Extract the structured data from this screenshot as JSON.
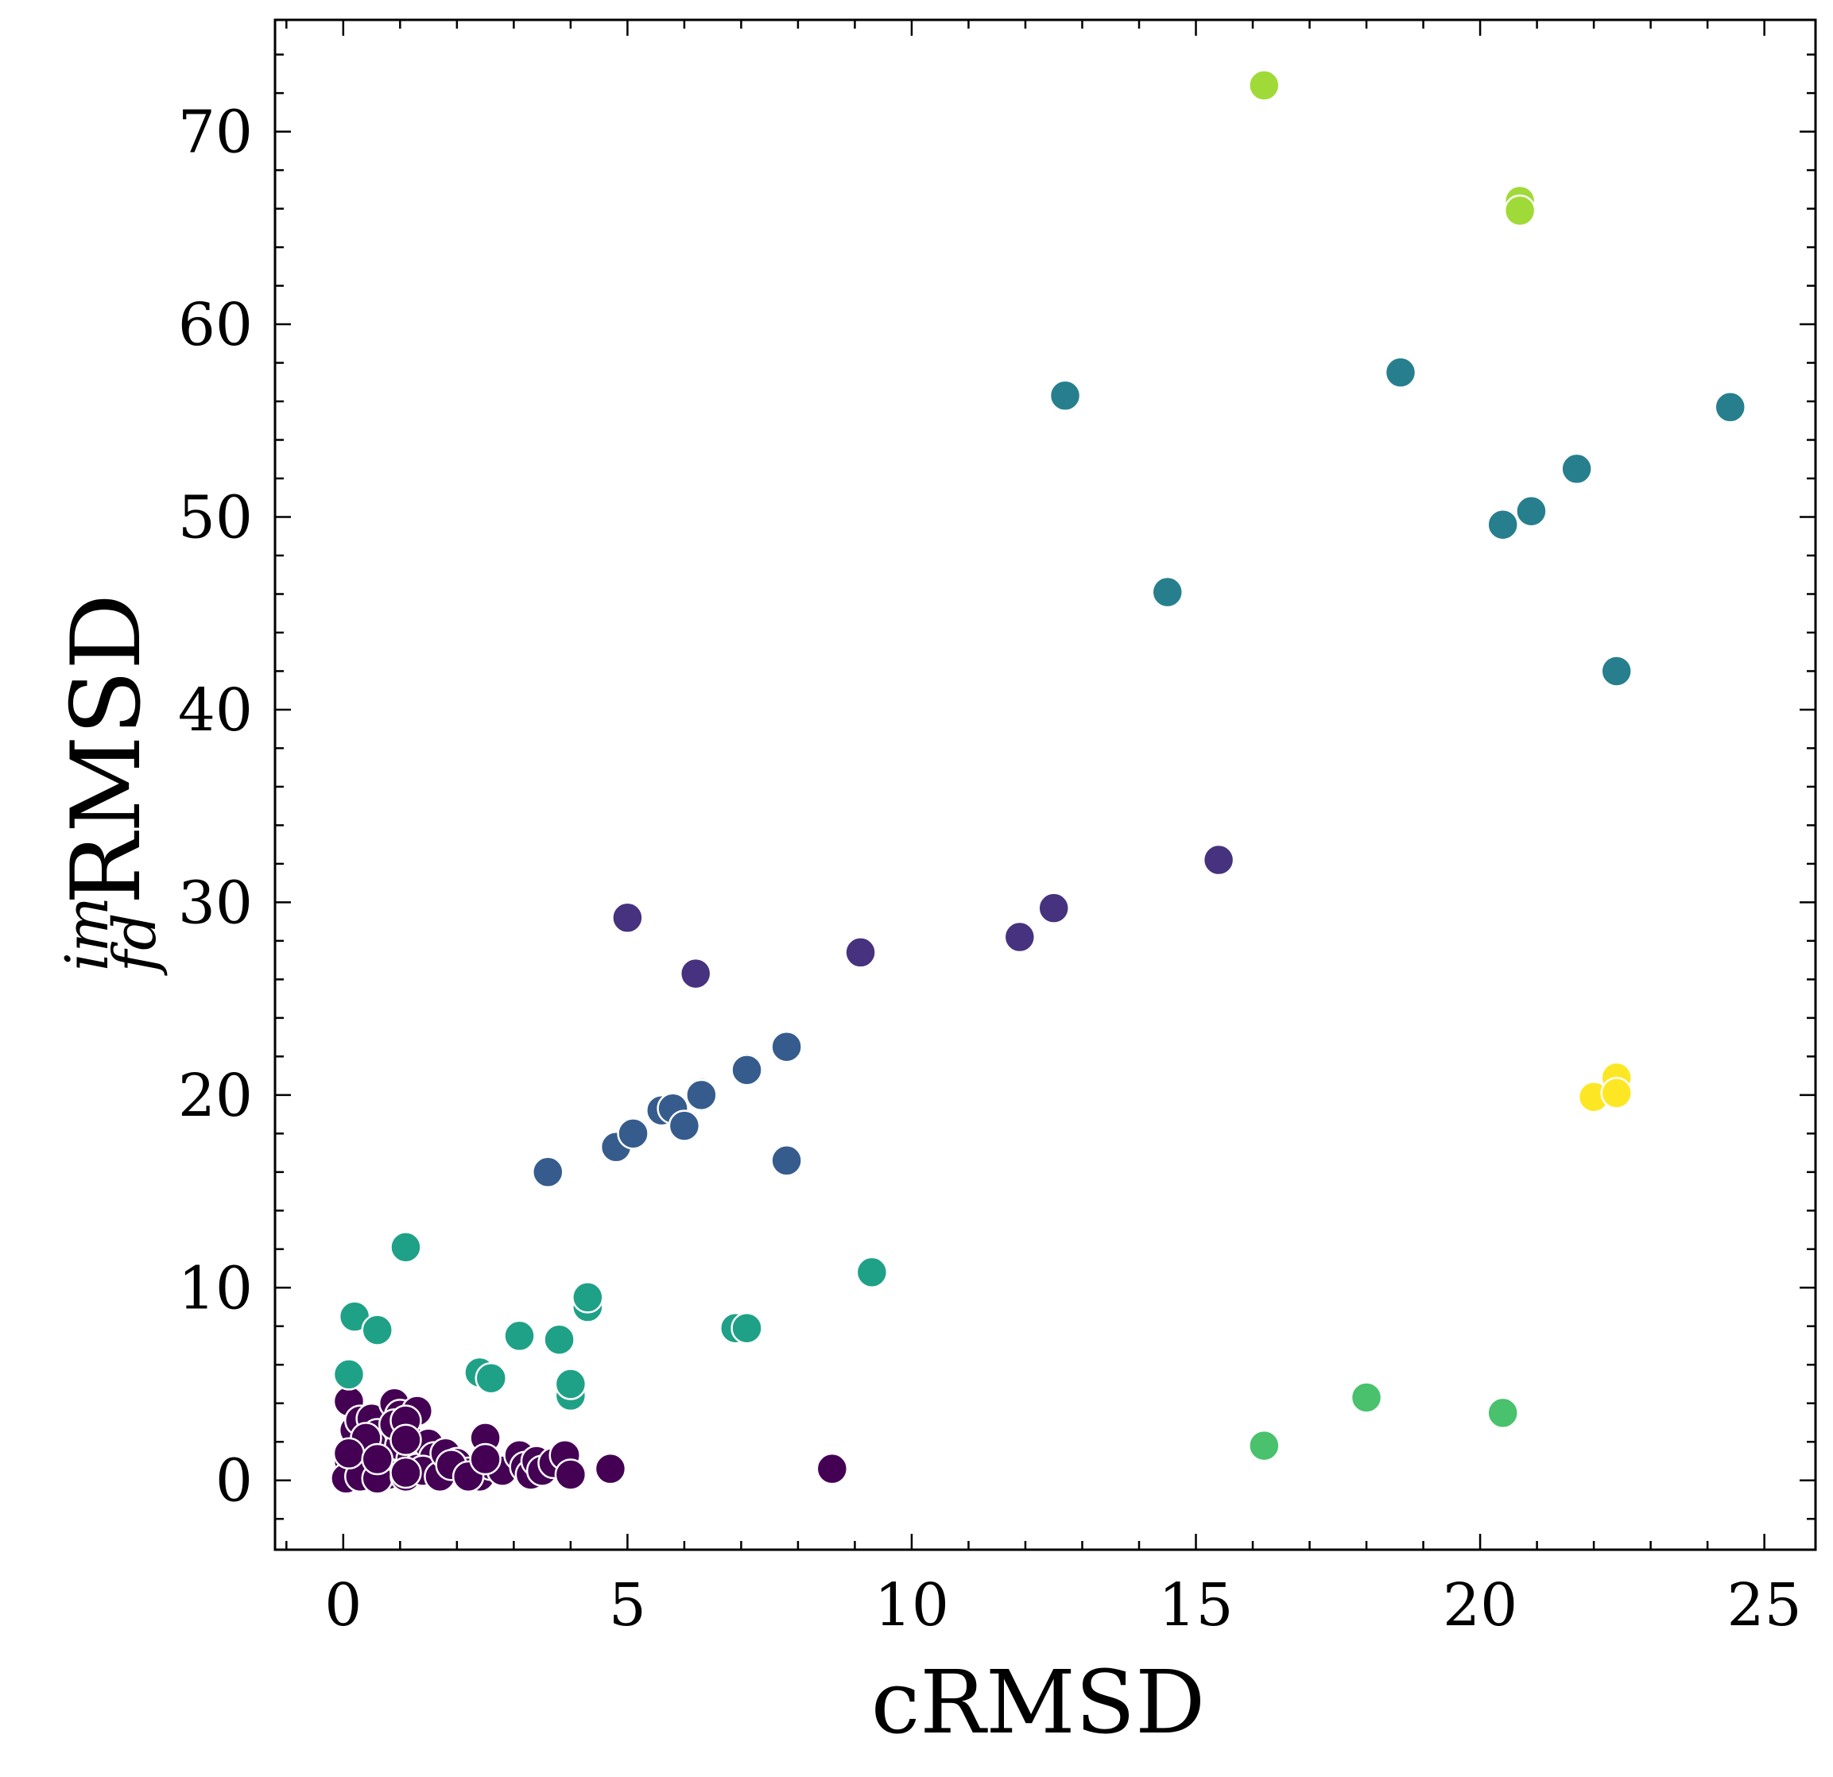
{
  "chart_data": {
    "type": "scatter",
    "xlabel": "cRMSD",
    "ylabel": {
      "sup": "im",
      "sub": "fd",
      "main": "RMSD"
    },
    "xlim": [
      -1.2,
      25.9
    ],
    "ylim": [
      -3.6,
      75.8
    ],
    "x_major_ticks": [
      0,
      5,
      10,
      15,
      20,
      25
    ],
    "y_major_ticks": [
      0,
      10,
      20,
      30,
      40,
      50,
      60,
      70
    ],
    "x_tick_labels": [
      "0",
      "5",
      "10",
      "15",
      "20",
      "25"
    ],
    "y_tick_labels": [
      "0",
      "10",
      "20",
      "30",
      "40",
      "50",
      "60",
      "70"
    ],
    "x_minor_step": 1,
    "y_minor_step": 2,
    "grid": false,
    "legend": "none",
    "colormap": "viridis",
    "series": [
      {
        "color": "#440154",
        "points": [
          [
            0.1,
            4.1
          ],
          [
            0.2,
            2.6
          ],
          [
            0.3,
            3.1
          ],
          [
            0.4,
            1.5
          ],
          [
            0.1,
            1.0
          ],
          [
            0.2,
            0.4
          ],
          [
            0.05,
            0.1
          ],
          [
            0.3,
            0.2
          ],
          [
            0.5,
            3.2
          ],
          [
            0.6,
            2.4
          ],
          [
            0.5,
            1.9
          ],
          [
            0.7,
            0.9
          ],
          [
            0.8,
            0.3
          ],
          [
            0.6,
            0.1
          ],
          [
            0.4,
            2.2
          ],
          [
            0.9,
            4.0
          ],
          [
            1.0,
            3.4
          ],
          [
            1.1,
            2.6
          ],
          [
            1.0,
            1.8
          ],
          [
            1.2,
            1.1
          ],
          [
            1.3,
            0.6
          ],
          [
            1.1,
            0.2
          ],
          [
            0.9,
            2.9
          ],
          [
            1.3,
            3.6
          ],
          [
            1.5,
            1.9
          ],
          [
            1.6,
            1.2
          ],
          [
            1.4,
            0.5
          ],
          [
            1.7,
            0.2
          ],
          [
            1.8,
            1.4
          ],
          [
            2.0,
            0.9
          ],
          [
            2.2,
            0.4
          ],
          [
            2.4,
            0.2
          ],
          [
            2.5,
            2.2
          ],
          [
            2.6,
            0.8
          ],
          [
            2.8,
            0.5
          ],
          [
            3.1,
            1.3
          ],
          [
            3.2,
            0.7
          ],
          [
            3.3,
            0.3
          ],
          [
            3.4,
            1.0
          ],
          [
            3.5,
            0.5
          ],
          [
            3.7,
            0.9
          ],
          [
            3.9,
            1.3
          ],
          [
            4.0,
            0.3
          ],
          [
            4.7,
            0.6
          ],
          [
            8.6,
            0.6
          ],
          [
            0.1,
            1.4
          ],
          [
            0.6,
            1.1
          ],
          [
            1.1,
            3.1
          ],
          [
            1.1,
            2.1
          ],
          [
            1.9,
            0.8
          ],
          [
            2.2,
            0.2
          ],
          [
            2.5,
            1.1
          ],
          [
            1.1,
            0.4
          ]
        ]
      },
      {
        "color": "#46327e",
        "points": [
          [
            5.0,
            29.2
          ],
          [
            6.2,
            26.3
          ],
          [
            9.1,
            27.4
          ],
          [
            11.9,
            28.2
          ],
          [
            12.5,
            29.7
          ],
          [
            15.4,
            32.2
          ]
        ]
      },
      {
        "color": "#365c8d",
        "points": [
          [
            3.6,
            16.0
          ],
          [
            4.8,
            17.3
          ],
          [
            5.1,
            18.0
          ],
          [
            5.6,
            19.2
          ],
          [
            5.8,
            19.3
          ],
          [
            6.0,
            18.4
          ],
          [
            6.3,
            20.1
          ],
          [
            6.3,
            20.0
          ],
          [
            7.1,
            21.4
          ],
          [
            7.1,
            21.3
          ],
          [
            7.8,
            22.5
          ],
          [
            7.8,
            16.6
          ]
        ]
      },
      {
        "color": "#277f8e",
        "points": [
          [
            12.7,
            56.3
          ],
          [
            14.5,
            46.1
          ],
          [
            18.6,
            57.5
          ],
          [
            20.4,
            49.6
          ],
          [
            20.9,
            50.3
          ],
          [
            21.7,
            52.5
          ],
          [
            22.4,
            42.0
          ],
          [
            24.4,
            55.7
          ]
        ]
      },
      {
        "color": "#1fa187",
        "points": [
          [
            1.1,
            12.1
          ],
          [
            0.2,
            8.5
          ],
          [
            0.6,
            7.8
          ],
          [
            0.1,
            5.5
          ],
          [
            2.4,
            5.6
          ],
          [
            2.6,
            5.3
          ],
          [
            3.1,
            7.5
          ],
          [
            3.8,
            7.3
          ],
          [
            4.0,
            4.4
          ],
          [
            4.0,
            5.0
          ],
          [
            4.3,
            9.0
          ],
          [
            4.3,
            9.5
          ],
          [
            6.9,
            7.9
          ],
          [
            7.1,
            7.9
          ],
          [
            9.3,
            10.8
          ]
        ]
      },
      {
        "color": "#4ac16d",
        "points": [
          [
            16.2,
            1.8
          ],
          [
            18.0,
            4.3
          ],
          [
            20.4,
            3.5
          ]
        ]
      },
      {
        "color": "#a0da39",
        "points": [
          [
            16.2,
            72.4
          ],
          [
            20.7,
            66.4
          ],
          [
            20.7,
            65.9
          ]
        ]
      },
      {
        "color": "#fde725",
        "points": [
          [
            22.0,
            19.9
          ],
          [
            22.4,
            20.9
          ],
          [
            22.4,
            20.1
          ]
        ]
      }
    ]
  }
}
